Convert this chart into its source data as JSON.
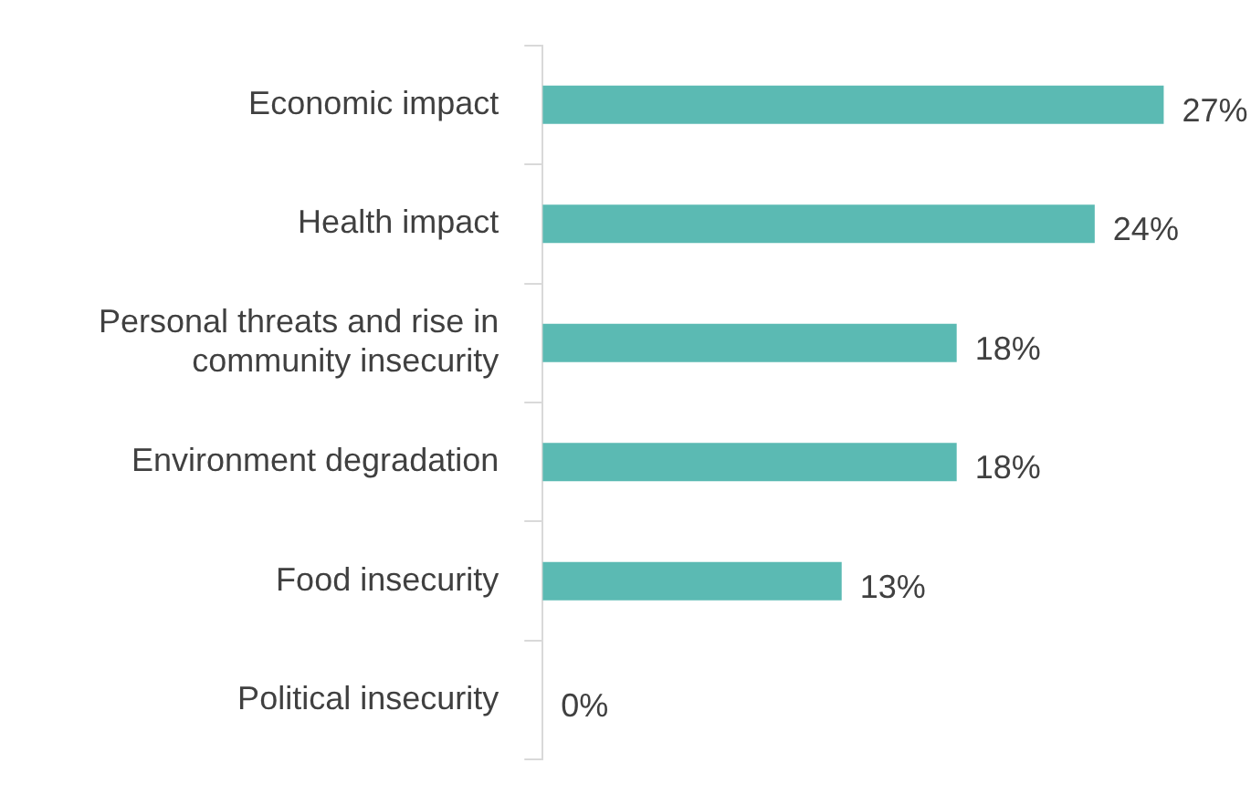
{
  "chart_data": {
    "type": "bar",
    "orientation": "horizontal",
    "categories": [
      "Economic impact",
      "Health impact",
      "Personal threats and rise in community insecurity",
      "Environment degradation",
      "Food insecurity",
      "Political insecurity"
    ],
    "values": [
      27,
      24,
      18,
      18,
      13,
      0
    ],
    "value_labels": [
      "27%",
      "24%",
      "18%",
      "18%",
      "13%",
      "0%"
    ],
    "color": "#5bbab3",
    "tick_labels": "y"
  }
}
